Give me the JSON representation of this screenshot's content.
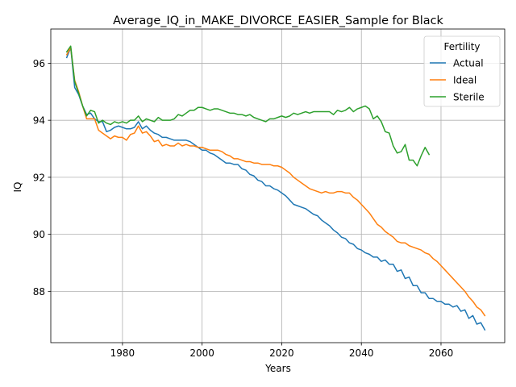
{
  "chart_data": {
    "type": "line",
    "title": "Average_IQ_in_MAKE_DIVORCE_EASIER_Sample for Black",
    "xlabel": "Years",
    "ylabel": "IQ",
    "xlim": [
      1962,
      2076
    ],
    "ylim": [
      86.2,
      97.2
    ],
    "xticks": [
      1980,
      2000,
      2020,
      2040,
      2060
    ],
    "yticks": [
      88,
      90,
      92,
      94,
      96
    ],
    "grid": true,
    "legend": {
      "title": "Fertility",
      "placement": "top-right"
    },
    "series": [
      {
        "name": "Actual",
        "color": "#1f77b4",
        "points": [
          [
            1966,
            96.2
          ],
          [
            1967,
            96.55
          ],
          [
            1968,
            95.15
          ],
          [
            1969,
            94.9
          ],
          [
            1970,
            94.5
          ],
          [
            1971,
            94.2
          ],
          [
            1972,
            94.25
          ],
          [
            1973,
            94.05
          ],
          [
            1974,
            93.95
          ],
          [
            1975,
            93.95
          ],
          [
            1976,
            93.6
          ],
          [
            1977,
            93.65
          ],
          [
            1978,
            93.75
          ],
          [
            1979,
            93.8
          ],
          [
            1980,
            93.75
          ],
          [
            1981,
            93.7
          ],
          [
            1982,
            93.7
          ],
          [
            1983,
            93.75
          ],
          [
            1984,
            93.95
          ],
          [
            1985,
            93.7
          ],
          [
            1986,
            93.8
          ],
          [
            1987,
            93.65
          ],
          [
            1988,
            93.55
          ],
          [
            1989,
            93.5
          ],
          [
            1990,
            93.4
          ],
          [
            1991,
            93.4
          ],
          [
            1992,
            93.35
          ],
          [
            1993,
            93.3
          ],
          [
            1994,
            93.3
          ],
          [
            1995,
            93.3
          ],
          [
            1996,
            93.3
          ],
          [
            1997,
            93.25
          ],
          [
            1998,
            93.15
          ],
          [
            1999,
            93.05
          ],
          [
            2000,
            92.95
          ],
          [
            2001,
            92.95
          ],
          [
            2002,
            92.85
          ],
          [
            2003,
            92.8
          ],
          [
            2004,
            92.7
          ],
          [
            2005,
            92.6
          ],
          [
            2006,
            92.5
          ],
          [
            2007,
            92.5
          ],
          [
            2008,
            92.45
          ],
          [
            2009,
            92.45
          ],
          [
            2010,
            92.3
          ],
          [
            2011,
            92.25
          ],
          [
            2012,
            92.1
          ],
          [
            2013,
            92.05
          ],
          [
            2014,
            91.9
          ],
          [
            2015,
            91.85
          ],
          [
            2016,
            91.7
          ],
          [
            2017,
            91.7
          ],
          [
            2018,
            91.6
          ],
          [
            2019,
            91.55
          ],
          [
            2020,
            91.45
          ],
          [
            2021,
            91.35
          ],
          [
            2022,
            91.2
          ],
          [
            2023,
            91.05
          ],
          [
            2024,
            91.0
          ],
          [
            2025,
            90.95
          ],
          [
            2026,
            90.9
          ],
          [
            2027,
            90.8
          ],
          [
            2028,
            90.7
          ],
          [
            2029,
            90.65
          ],
          [
            2030,
            90.5
          ],
          [
            2031,
            90.4
          ],
          [
            2032,
            90.3
          ],
          [
            2033,
            90.15
          ],
          [
            2034,
            90.05
          ],
          [
            2035,
            89.9
          ],
          [
            2036,
            89.85
          ],
          [
            2037,
            89.7
          ],
          [
            2038,
            89.65
          ],
          [
            2039,
            89.5
          ],
          [
            2040,
            89.45
          ],
          [
            2041,
            89.35
          ],
          [
            2042,
            89.3
          ],
          [
            2043,
            89.2
          ],
          [
            2044,
            89.2
          ],
          [
            2045,
            89.05
          ],
          [
            2046,
            89.1
          ],
          [
            2047,
            88.95
          ],
          [
            2048,
            88.95
          ],
          [
            2049,
            88.7
          ],
          [
            2050,
            88.75
          ],
          [
            2051,
            88.45
          ],
          [
            2052,
            88.5
          ],
          [
            2053,
            88.2
          ],
          [
            2054,
            88.2
          ],
          [
            2055,
            87.95
          ],
          [
            2056,
            87.95
          ],
          [
            2057,
            87.75
          ],
          [
            2058,
            87.75
          ],
          [
            2059,
            87.65
          ],
          [
            2060,
            87.65
          ],
          [
            2061,
            87.55
          ],
          [
            2062,
            87.55
          ],
          [
            2063,
            87.45
          ],
          [
            2064,
            87.5
          ],
          [
            2065,
            87.3
          ],
          [
            2066,
            87.35
          ],
          [
            2067,
            87.05
          ],
          [
            2068,
            87.15
          ],
          [
            2069,
            86.85
          ],
          [
            2070,
            86.9
          ],
          [
            2071,
            86.65
          ]
        ]
      },
      {
        "name": "Ideal",
        "color": "#ff7f0e",
        "points": [
          [
            1966,
            96.3
          ],
          [
            1967,
            96.55
          ],
          [
            1968,
            95.4
          ],
          [
            1969,
            95.0
          ],
          [
            1970,
            94.5
          ],
          [
            1971,
            94.05
          ],
          [
            1972,
            94.05
          ],
          [
            1973,
            94.05
          ],
          [
            1974,
            93.65
          ],
          [
            1975,
            93.55
          ],
          [
            1976,
            93.45
          ],
          [
            1977,
            93.35
          ],
          [
            1978,
            93.45
          ],
          [
            1979,
            93.4
          ],
          [
            1980,
            93.4
          ],
          [
            1981,
            93.3
          ],
          [
            1982,
            93.5
          ],
          [
            1983,
            93.55
          ],
          [
            1984,
            93.8
          ],
          [
            1985,
            93.55
          ],
          [
            1986,
            93.6
          ],
          [
            1987,
            93.45
          ],
          [
            1988,
            93.25
          ],
          [
            1989,
            93.3
          ],
          [
            1990,
            93.1
          ],
          [
            1991,
            93.15
          ],
          [
            1992,
            93.1
          ],
          [
            1993,
            93.1
          ],
          [
            1994,
            93.2
          ],
          [
            1995,
            93.1
          ],
          [
            1996,
            93.15
          ],
          [
            1997,
            93.1
          ],
          [
            1998,
            93.1
          ],
          [
            1999,
            93.05
          ],
          [
            2000,
            93.05
          ],
          [
            2001,
            93.0
          ],
          [
            2002,
            92.95
          ],
          [
            2003,
            92.95
          ],
          [
            2004,
            92.95
          ],
          [
            2005,
            92.9
          ],
          [
            2006,
            92.8
          ],
          [
            2007,
            92.75
          ],
          [
            2008,
            92.65
          ],
          [
            2009,
            92.65
          ],
          [
            2010,
            92.6
          ],
          [
            2011,
            92.55
          ],
          [
            2012,
            92.55
          ],
          [
            2013,
            92.5
          ],
          [
            2014,
            92.5
          ],
          [
            2015,
            92.45
          ],
          [
            2016,
            92.45
          ],
          [
            2017,
            92.45
          ],
          [
            2018,
            92.4
          ],
          [
            2019,
            92.4
          ],
          [
            2020,
            92.35
          ],
          [
            2021,
            92.25
          ],
          [
            2022,
            92.15
          ],
          [
            2023,
            92.0
          ],
          [
            2024,
            91.9
          ],
          [
            2025,
            91.8
          ],
          [
            2026,
            91.7
          ],
          [
            2027,
            91.6
          ],
          [
            2028,
            91.55
          ],
          [
            2029,
            91.5
          ],
          [
            2030,
            91.45
          ],
          [
            2031,
            91.5
          ],
          [
            2032,
            91.45
          ],
          [
            2033,
            91.45
          ],
          [
            2034,
            91.5
          ],
          [
            2035,
            91.5
          ],
          [
            2036,
            91.45
          ],
          [
            2037,
            91.45
          ],
          [
            2038,
            91.3
          ],
          [
            2039,
            91.2
          ],
          [
            2040,
            91.05
          ],
          [
            2041,
            90.9
          ],
          [
            2042,
            90.75
          ],
          [
            2043,
            90.55
          ],
          [
            2044,
            90.35
          ],
          [
            2045,
            90.25
          ],
          [
            2046,
            90.1
          ],
          [
            2047,
            90.0
          ],
          [
            2048,
            89.9
          ],
          [
            2049,
            89.75
          ],
          [
            2050,
            89.7
          ],
          [
            2051,
            89.7
          ],
          [
            2052,
            89.6
          ],
          [
            2053,
            89.55
          ],
          [
            2054,
            89.5
          ],
          [
            2055,
            89.45
          ],
          [
            2056,
            89.35
          ],
          [
            2057,
            89.3
          ],
          [
            2058,
            89.15
          ],
          [
            2059,
            89.05
          ],
          [
            2060,
            88.9
          ],
          [
            2061,
            88.75
          ],
          [
            2062,
            88.6
          ],
          [
            2063,
            88.45
          ],
          [
            2064,
            88.3
          ],
          [
            2065,
            88.15
          ],
          [
            2066,
            88.0
          ],
          [
            2067,
            87.8
          ],
          [
            2068,
            87.65
          ],
          [
            2069,
            87.45
          ],
          [
            2070,
            87.35
          ],
          [
            2071,
            87.15
          ]
        ]
      },
      {
        "name": "Sterile",
        "color": "#2ca02c",
        "points": [
          [
            1966,
            96.4
          ],
          [
            1967,
            96.6
          ],
          [
            1968,
            95.35
          ],
          [
            1969,
            94.95
          ],
          [
            1970,
            94.5
          ],
          [
            1971,
            94.15
          ],
          [
            1972,
            94.35
          ],
          [
            1973,
            94.3
          ],
          [
            1974,
            93.9
          ],
          [
            1975,
            94.0
          ],
          [
            1976,
            93.9
          ],
          [
            1977,
            93.85
          ],
          [
            1978,
            93.95
          ],
          [
            1979,
            93.9
          ],
          [
            1980,
            93.95
          ],
          [
            1981,
            93.9
          ],
          [
            1982,
            94.0
          ],
          [
            1983,
            94.0
          ],
          [
            1984,
            94.15
          ],
          [
            1985,
            93.95
          ],
          [
            1986,
            94.05
          ],
          [
            1987,
            94.0
          ],
          [
            1988,
            93.95
          ],
          [
            1989,
            94.1
          ],
          [
            1990,
            94.0
          ],
          [
            1991,
            94.0
          ],
          [
            1992,
            94.0
          ],
          [
            1993,
            94.05
          ],
          [
            1994,
            94.2
          ],
          [
            1995,
            94.15
          ],
          [
            1996,
            94.25
          ],
          [
            1997,
            94.35
          ],
          [
            1998,
            94.35
          ],
          [
            1999,
            94.45
          ],
          [
            2000,
            94.45
          ],
          [
            2001,
            94.4
          ],
          [
            2002,
            94.35
          ],
          [
            2003,
            94.4
          ],
          [
            2004,
            94.4
          ],
          [
            2005,
            94.35
          ],
          [
            2006,
            94.3
          ],
          [
            2007,
            94.25
          ],
          [
            2008,
            94.25
          ],
          [
            2009,
            94.2
          ],
          [
            2010,
            94.2
          ],
          [
            2011,
            94.15
          ],
          [
            2012,
            94.2
          ],
          [
            2013,
            94.1
          ],
          [
            2014,
            94.05
          ],
          [
            2015,
            94.0
          ],
          [
            2016,
            93.95
          ],
          [
            2017,
            94.05
          ],
          [
            2018,
            94.05
          ],
          [
            2019,
            94.1
          ],
          [
            2020,
            94.15
          ],
          [
            2021,
            94.1
          ],
          [
            2022,
            94.15
          ],
          [
            2023,
            94.25
          ],
          [
            2024,
            94.2
          ],
          [
            2025,
            94.25
          ],
          [
            2026,
            94.3
          ],
          [
            2027,
            94.25
          ],
          [
            2028,
            94.3
          ],
          [
            2029,
            94.3
          ],
          [
            2030,
            94.3
          ],
          [
            2031,
            94.3
          ],
          [
            2032,
            94.3
          ],
          [
            2033,
            94.2
          ],
          [
            2034,
            94.35
          ],
          [
            2035,
            94.3
          ],
          [
            2036,
            94.35
          ],
          [
            2037,
            94.45
          ],
          [
            2038,
            94.3
          ],
          [
            2039,
            94.4
          ],
          [
            2040,
            94.45
          ],
          [
            2041,
            94.5
          ],
          [
            2042,
            94.4
          ],
          [
            2043,
            94.05
          ],
          [
            2044,
            94.15
          ],
          [
            2045,
            93.95
          ],
          [
            2046,
            93.6
          ],
          [
            2047,
            93.55
          ],
          [
            2048,
            93.1
          ],
          [
            2049,
            92.85
          ],
          [
            2050,
            92.9
          ],
          [
            2051,
            93.15
          ],
          [
            2052,
            92.6
          ],
          [
            2053,
            92.6
          ],
          [
            2054,
            92.4
          ],
          [
            2055,
            92.75
          ],
          [
            2056,
            93.05
          ],
          [
            2057,
            92.8
          ]
        ]
      }
    ]
  }
}
